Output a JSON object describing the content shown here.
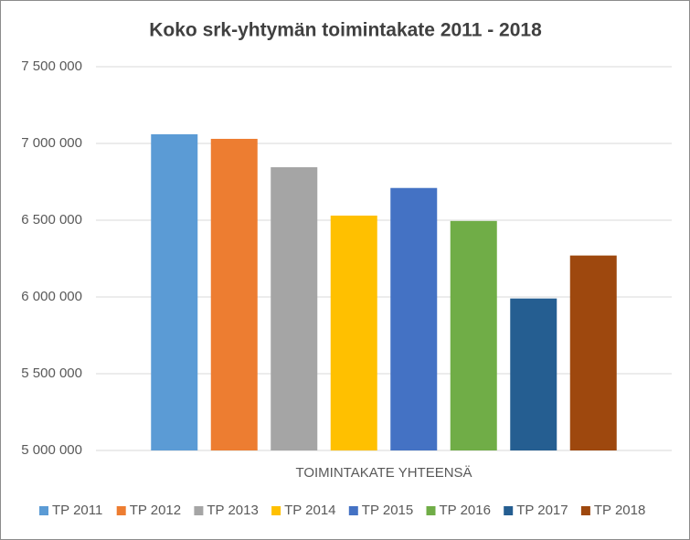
{
  "chart_data": {
    "type": "bar",
    "title": "Koko srk-yhtymän toimintakate 2011 - 2018",
    "categories": [
      "TOIMINTAKATE YHTEENSÄ"
    ],
    "series": [
      {
        "name": "TP 2011",
        "color": "#5b9bd5",
        "values": [
          7060000
        ]
      },
      {
        "name": "TP 2012",
        "color": "#ed7d31",
        "values": [
          7030000
        ]
      },
      {
        "name": "TP 2013",
        "color": "#a5a5a5",
        "values": [
          6845000
        ]
      },
      {
        "name": "TP 2014",
        "color": "#ffc000",
        "values": [
          6530000
        ]
      },
      {
        "name": "TP 2015",
        "color": "#4472c4",
        "values": [
          6710000
        ]
      },
      {
        "name": "TP 2016",
        "color": "#70ad47",
        "values": [
          6495000
        ]
      },
      {
        "name": "TP 2017",
        "color": "#255e91",
        "values": [
          5990000
        ]
      },
      {
        "name": "TP 2018",
        "color": "#9e480e",
        "values": [
          6270000
        ]
      }
    ],
    "ylim": [
      5000000,
      7500000
    ],
    "yticks": [
      {
        "value": 5000000,
        "label": "5 000 000"
      },
      {
        "value": 5500000,
        "label": "5 500 000"
      },
      {
        "value": 6000000,
        "label": "6 000 000"
      },
      {
        "value": 6500000,
        "label": "6 500 000"
      },
      {
        "value": 7000000,
        "label": "7 000 000"
      },
      {
        "value": 7500000,
        "label": "7 500 000"
      }
    ],
    "grid": true,
    "legend": "bottom"
  }
}
